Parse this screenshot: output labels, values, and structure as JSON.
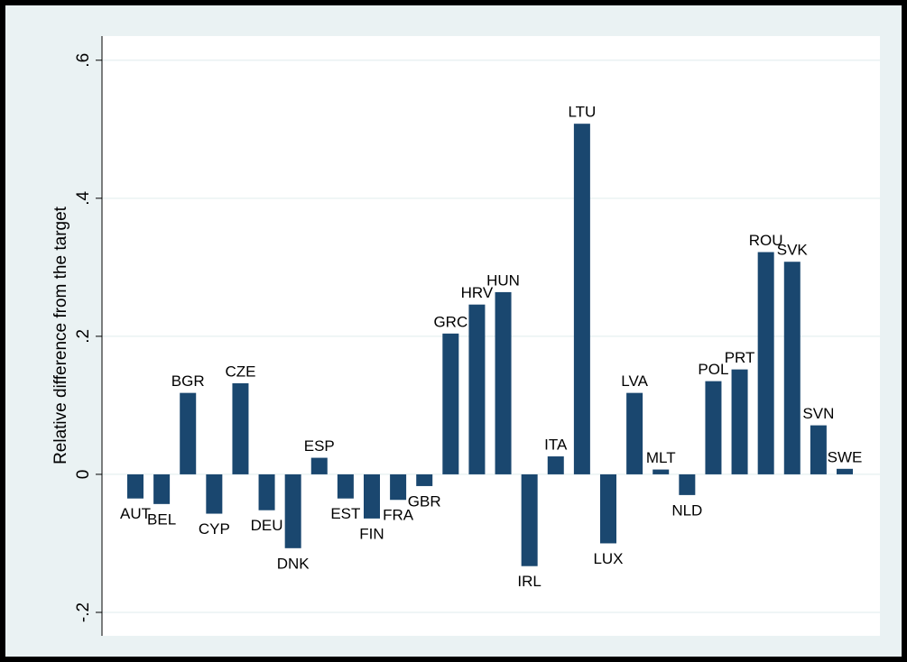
{
  "chart_data": {
    "type": "bar",
    "y_label": "Relative difference from the target",
    "categories": [
      "AUT",
      "BEL",
      "BGR",
      "CYP",
      "CZE",
      "DEU",
      "DNK",
      "ESP",
      "EST",
      "FIN",
      "FRA",
      "GBR",
      "GRC",
      "HRV",
      "HUN",
      "IRL",
      "ITA",
      "LTU",
      "LUX",
      "LVA",
      "MLT",
      "NLD",
      "POL",
      "PRT",
      "ROU",
      "SVK",
      "SVN",
      "SWE"
    ],
    "values": [
      -0.035,
      -0.043,
      0.118,
      -0.057,
      0.132,
      -0.052,
      -0.107,
      0.024,
      -0.035,
      -0.064,
      -0.037,
      -0.017,
      0.204,
      0.246,
      0.264,
      -0.133,
      0.026,
      0.508,
      -0.1,
      0.118,
      0.007,
      -0.03,
      0.135,
      0.152,
      0.322,
      0.308,
      0.071,
      0.008
    ],
    "color": "#1a476f",
    "ylim": [
      -0.234,
      0.635
    ],
    "yticks": [
      {
        "value": -0.2,
        "label": "-.2"
      },
      0,
      {
        "value": 0.2,
        "label": ".2"
      },
      {
        "value": 0.4,
        "label": ".4"
      },
      {
        "value": 0.6,
        "label": ".6"
      }
    ],
    "grid": true
  }
}
